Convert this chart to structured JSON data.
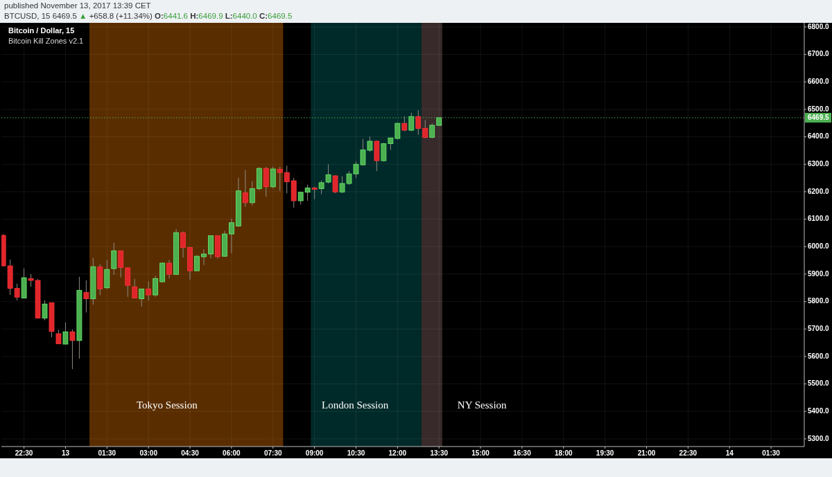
{
  "chart_data": {
    "type": "candlestick",
    "title": "Bitcoin / Dollar, 15",
    "subtitle": "Bitcoin Kill Zones v2.1",
    "x": [
      "2017-11-12T21:45",
      "2017-11-12T22:00",
      "2017-11-12T22:15",
      "2017-11-12T22:30",
      "2017-11-12T22:45",
      "2017-11-12T23:00",
      "2017-11-12T23:15",
      "2017-11-12T23:30",
      "2017-11-12T23:45",
      "2017-11-13T00:00",
      "2017-11-13T00:15",
      "2017-11-13T00:30",
      "2017-11-13T00:45",
      "2017-11-13T01:00",
      "2017-11-13T01:15",
      "2017-11-13T01:30",
      "2017-11-13T01:45",
      "2017-11-13T02:00",
      "2017-11-13T02:15",
      "2017-11-13T02:30",
      "2017-11-13T02:45",
      "2017-11-13T03:00",
      "2017-11-13T03:15",
      "2017-11-13T03:30",
      "2017-11-13T03:45",
      "2017-11-13T04:00",
      "2017-11-13T04:15",
      "2017-11-13T04:30",
      "2017-11-13T04:45",
      "2017-11-13T05:00",
      "2017-11-13T05:15",
      "2017-11-13T05:30",
      "2017-11-13T05:45",
      "2017-11-13T06:00",
      "2017-11-13T06:15",
      "2017-11-13T06:30",
      "2017-11-13T06:45",
      "2017-11-13T07:00",
      "2017-11-13T07:15",
      "2017-11-13T07:30",
      "2017-11-13T07:45",
      "2017-11-13T08:00",
      "2017-11-13T08:15",
      "2017-11-13T08:30",
      "2017-11-13T08:45",
      "2017-11-13T09:00",
      "2017-11-13T09:15",
      "2017-11-13T09:30",
      "2017-11-13T09:45",
      "2017-11-13T10:00",
      "2017-11-13T10:15",
      "2017-11-13T10:30",
      "2017-11-13T10:45",
      "2017-11-13T11:00",
      "2017-11-13T11:15",
      "2017-11-13T11:30",
      "2017-11-13T11:45",
      "2017-11-13T12:00",
      "2017-11-13T12:15",
      "2017-11-13T12:30",
      "2017-11-13T12:45",
      "2017-11-13T13:00",
      "2017-11-13T13:15",
      "2017-11-13T13:30"
    ],
    "ohlc": [
      [
        6041,
        6045,
        5928,
        5930
      ],
      [
        5930,
        5953,
        5824,
        5848
      ],
      [
        5848,
        5865,
        5804,
        5816
      ],
      [
        5813,
        5921,
        5812,
        5887
      ],
      [
        5884,
        5900,
        5854,
        5877
      ],
      [
        5877,
        5882,
        5738,
        5740
      ],
      [
        5740,
        5804,
        5732,
        5791
      ],
      [
        5796,
        5796,
        5670,
        5691
      ],
      [
        5683,
        5697,
        5646,
        5646
      ],
      [
        5645,
        5724,
        5645,
        5690
      ],
      [
        5690,
        5698,
        5554,
        5658
      ],
      [
        5658,
        5890,
        5592,
        5841
      ],
      [
        5833,
        5877,
        5760,
        5810
      ],
      [
        5810,
        5959,
        5789,
        5927
      ],
      [
        5926,
        5936,
        5823,
        5846
      ],
      [
        5850,
        5951,
        5846,
        5917
      ],
      [
        5920,
        6014,
        5897,
        5985
      ],
      [
        5985,
        5985,
        5888,
        5924
      ],
      [
        5923,
        5923,
        5817,
        5859
      ],
      [
        5854,
        5883,
        5813,
        5813
      ],
      [
        5810,
        5846,
        5782,
        5846
      ],
      [
        5846,
        5873,
        5804,
        5824
      ],
      [
        5824,
        5894,
        5817,
        5884
      ],
      [
        5872,
        5942,
        5870,
        5940
      ],
      [
        5940,
        5951,
        5884,
        5899
      ],
      [
        5899,
        6064,
        5899,
        6051
      ],
      [
        6051,
        6055,
        5960,
        5997
      ],
      [
        5997,
        5999,
        5880,
        5912
      ],
      [
        5912,
        5969,
        5912,
        5965
      ],
      [
        5963,
        5990,
        5933,
        5973
      ],
      [
        5973,
        6040,
        5957,
        6040
      ],
      [
        6040,
        6040,
        5957,
        5963
      ],
      [
        5965,
        6058,
        5963,
        6046
      ],
      [
        6046,
        6102,
        5976,
        6087
      ],
      [
        6075,
        6251,
        6072,
        6203
      ],
      [
        6196,
        6279,
        6145,
        6160
      ],
      [
        6160,
        6238,
        6150,
        6211
      ],
      [
        6211,
        6290,
        6205,
        6285
      ],
      [
        6285,
        6290,
        6182,
        6218
      ],
      [
        6218,
        6291,
        6212,
        6283
      ],
      [
        6282,
        6291,
        6203,
        6270
      ],
      [
        6270,
        6295,
        6194,
        6236
      ],
      [
        6240,
        6250,
        6142,
        6167
      ],
      [
        6167,
        6200,
        6153,
        6198
      ],
      [
        6198,
        6226,
        6167,
        6214
      ],
      [
        6214,
        6218,
        6173,
        6209
      ],
      [
        6211,
        6241,
        6191,
        6233
      ],
      [
        6235,
        6300,
        6230,
        6262
      ],
      [
        6258,
        6260,
        6195,
        6199
      ],
      [
        6199,
        6256,
        6195,
        6230
      ],
      [
        6230,
        6275,
        6225,
        6265
      ],
      [
        6265,
        6310,
        6250,
        6300
      ],
      [
        6298,
        6392,
        6295,
        6352
      ],
      [
        6351,
        6401,
        6345,
        6384
      ],
      [
        6384,
        6386,
        6275,
        6313
      ],
      [
        6313,
        6378,
        6310,
        6375
      ],
      [
        6375,
        6396,
        6352,
        6396
      ],
      [
        6394,
        6452,
        6390,
        6449
      ],
      [
        6449,
        6475,
        6420,
        6424
      ],
      [
        6424,
        6488,
        6420,
        6474
      ],
      [
        6474,
        6497,
        6407,
        6430
      ],
      [
        6431,
        6461,
        6395,
        6398
      ],
      [
        6398,
        6449,
        6395,
        6442
      ],
      [
        6441.6,
        6469.9,
        6440.0,
        6469.5
      ]
    ],
    "colors": [
      "#e0262a",
      "#e0262a",
      "#e0262a",
      "#4caf50",
      "#e0262a",
      "#e0262a",
      "#4caf50",
      "#e0262a",
      "#e0262a",
      "#4caf50",
      "#e0262a",
      "#4caf50",
      "#e0262a",
      "#4caf50",
      "#e0262a",
      "#4caf50",
      "#4caf50",
      "#e0262a",
      "#e0262a",
      "#e0262a",
      "#4caf50",
      "#e0262a",
      "#4caf50",
      "#4caf50",
      "#e0262a",
      "#4caf50",
      "#e0262a",
      "#e0262a",
      "#4caf50",
      "#4caf50",
      "#4caf50",
      "#e0262a",
      "#4caf50",
      "#4caf50",
      "#4caf50",
      "#e0262a",
      "#4caf50",
      "#4caf50",
      "#e0262a",
      "#4caf50",
      "#e0262a",
      "#e0262a",
      "#e0262a",
      "#4caf50",
      "#4caf50",
      "#e0262a",
      "#4caf50",
      "#4caf50",
      "#e0262a",
      "#4caf50",
      "#4caf50",
      "#4caf50",
      "#4caf50",
      "#4caf50",
      "#e0262a",
      "#4caf50",
      "#4caf50",
      "#4caf50",
      "#e0262a",
      "#4caf50",
      "#e0262a",
      "#e0262a",
      "#4caf50",
      "#4caf50"
    ],
    "xlim": [
      "2017-11-12T21:41",
      "2017-11-14T02:42"
    ],
    "xticks": [
      {
        "value": "2017-11-12T22:30",
        "label": "22:30"
      },
      {
        "value": "2017-11-13",
        "label": "13"
      },
      {
        "value": "2017-11-13T01:30",
        "label": "01:30"
      },
      {
        "value": "2017-11-13T03:00",
        "label": "03:00"
      },
      {
        "value": "2017-11-13T04:30",
        "label": "04:30"
      },
      {
        "value": "2017-11-13T06:00",
        "label": "06:00"
      },
      {
        "value": "2017-11-13T07:30",
        "label": "07:30"
      },
      {
        "value": "2017-11-13T09:00",
        "label": "09:00"
      },
      {
        "value": "2017-11-13T10:30",
        "label": "10:30"
      },
      {
        "value": "2017-11-13T12:00",
        "label": "12:00"
      },
      {
        "value": "2017-11-13T13:30",
        "label": "13:30"
      },
      {
        "value": "2017-11-13T15:00",
        "label": "15:00"
      },
      {
        "value": "2017-11-13T16:30",
        "label": "16:30"
      },
      {
        "value": "2017-11-13T18:00",
        "label": "18:00"
      },
      {
        "value": "2017-11-13T19:30",
        "label": "19:30"
      },
      {
        "value": "2017-11-13T21:00",
        "label": "21:00"
      },
      {
        "value": "2017-11-13T22:30",
        "label": "22:30"
      },
      {
        "value": "2017-11-14",
        "label": "14"
      },
      {
        "value": "2017-11-14T01:30",
        "label": "01:30"
      }
    ],
    "ylim": [
      5272,
      6815
    ],
    "yticks": [
      {
        "value": 5300,
        "label": "5300.0"
      },
      {
        "value": 5400,
        "label": "5400.0"
      },
      {
        "value": 5500,
        "label": "5500.0"
      },
      {
        "value": 5600,
        "label": "5600.0"
      },
      {
        "value": 5700,
        "label": "5700.0"
      },
      {
        "value": 5800,
        "label": "5800.0"
      },
      {
        "value": 5900,
        "label": "5900.0"
      },
      {
        "value": 6000,
        "label": "6000.0"
      },
      {
        "value": 6100,
        "label": "6100.0"
      },
      {
        "value": 6200,
        "label": "6200.0"
      },
      {
        "value": 6300,
        "label": "6300.0"
      },
      {
        "value": 6400,
        "label": "6400.0"
      },
      {
        "value": 6500,
        "label": "6500.0"
      },
      {
        "value": 6600,
        "label": "6600.0"
      },
      {
        "value": 6700,
        "label": "6700.0"
      },
      {
        "value": 6800,
        "label": "6800.0"
      }
    ],
    "grid": true,
    "bands": [
      {
        "axis": "x",
        "from": "2017-11-13T00:52",
        "to": "2017-11-13T07:52",
        "color": "#5a2d00",
        "label": "Tokyo Session"
      },
      {
        "axis": "x",
        "from": "2017-11-13T08:52",
        "to": "2017-11-13T12:52",
        "color": "#002a29",
        "label": "London Session"
      },
      {
        "axis": "x",
        "from": "2017-11-13T12:52",
        "to": "2017-11-13T13:37",
        "color": "#382a2a",
        "label": "NY Session"
      }
    ],
    "ref_lines": [
      {
        "axis": "y",
        "value": 6469.5,
        "label": "6469.5",
        "color": "#4caf50",
        "line_style": "dotted"
      }
    ],
    "annotations": [
      "published November 13, 2017 13:39 CET",
      "BTCUSD, 15 6469.5 ▲ +658.8 (+11.34%) O:6441.6 H:6469.9 L:6440.0 C:6469.5"
    ]
  }
}
